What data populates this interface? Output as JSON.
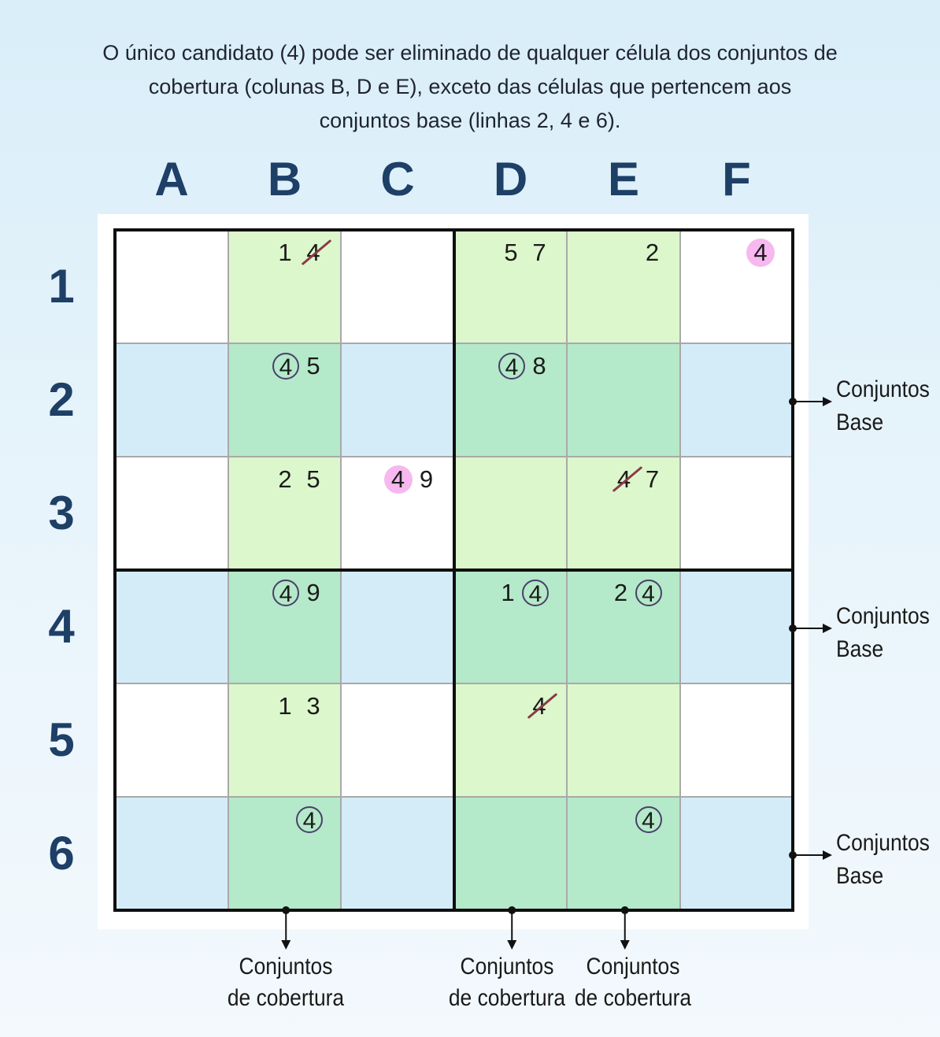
{
  "caption": [
    "O único candidato (4) pode ser eliminado de qualquer célula dos conjuntos de",
    "cobertura (colunas B, D e E), exceto das células que pertencem aos",
    "conjuntos base (linhas 2, 4 e 6)."
  ],
  "columns": [
    "A",
    "B",
    "C",
    "D",
    "E",
    "F"
  ],
  "rows": [
    "1",
    "2",
    "3",
    "4",
    "5",
    "6"
  ],
  "colors": {
    "white": "#ffffff",
    "base_row": "#d4ecf8",
    "cover_col": "#dcf7cb",
    "intersection": "#b4e9c9",
    "highlight_pink": "#f6b8ef",
    "strike": "#8a3a48",
    "header_blue": "#1e3f66"
  },
  "cells": [
    {
      "cell": "B1",
      "candidates": [
        {
          "v": "1"
        },
        {
          "v": "4",
          "style": "struck"
        }
      ]
    },
    {
      "cell": "D1",
      "candidates": [
        {
          "v": "5"
        },
        {
          "v": "7"
        }
      ]
    },
    {
      "cell": "E1",
      "candidates": [
        {
          "v": "2"
        }
      ]
    },
    {
      "cell": "F1",
      "candidates": [
        {
          "v": "4",
          "style": "pink"
        }
      ]
    },
    {
      "cell": "B2",
      "candidates": [
        {
          "v": "4",
          "style": "circle"
        },
        {
          "v": "5"
        }
      ]
    },
    {
      "cell": "D2",
      "candidates": [
        {
          "v": "4",
          "style": "circle"
        },
        {
          "v": "8"
        }
      ]
    },
    {
      "cell": "B3",
      "candidates": [
        {
          "v": "2"
        },
        {
          "v": "5"
        }
      ]
    },
    {
      "cell": "C3",
      "candidates": [
        {
          "v": "4",
          "style": "pink"
        },
        {
          "v": "9"
        }
      ]
    },
    {
      "cell": "E3",
      "candidates": [
        {
          "v": "4",
          "style": "struck"
        },
        {
          "v": "7"
        }
      ]
    },
    {
      "cell": "B4",
      "candidates": [
        {
          "v": "4",
          "style": "circle"
        },
        {
          "v": "9"
        }
      ]
    },
    {
      "cell": "D4",
      "candidates": [
        {
          "v": "1"
        },
        {
          "v": "4",
          "style": "circle"
        }
      ]
    },
    {
      "cell": "E4",
      "candidates": [
        {
          "v": "2"
        },
        {
          "v": "4",
          "style": "circle"
        }
      ]
    },
    {
      "cell": "B5",
      "candidates": [
        {
          "v": "1"
        },
        {
          "v": "3"
        }
      ]
    },
    {
      "cell": "D5",
      "candidates": [
        {
          "v": "4",
          "style": "struck"
        }
      ]
    },
    {
      "cell": "B6",
      "candidates": [
        {
          "v": "4",
          "style": "circle"
        }
      ]
    },
    {
      "cell": "E6",
      "candidates": [
        {
          "v": "4",
          "style": "circle"
        }
      ]
    }
  ],
  "base_sets": {
    "rows": [
      "2",
      "4",
      "6"
    ],
    "label_line1": "Conjuntos",
    "label_line2": "Base"
  },
  "cover_sets": {
    "columns": [
      "B",
      "D",
      "E"
    ],
    "label_line1": "Conjuntos",
    "label_line2": "de cobertura"
  }
}
